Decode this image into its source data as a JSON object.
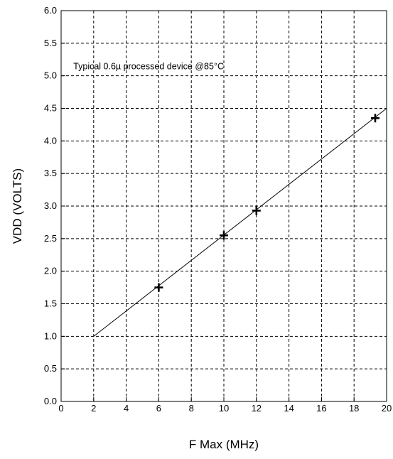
{
  "chart_data": {
    "type": "scatter",
    "title": "",
    "xlabel": "F Max (MHz)",
    "ylabel": "VDD (VOLTS)",
    "xlim": [
      0,
      20
    ],
    "ylim": [
      0.0,
      6.0
    ],
    "x_ticks": [
      0,
      2,
      4,
      6,
      8,
      10,
      12,
      14,
      16,
      18,
      20
    ],
    "y_ticks": [
      0.0,
      0.5,
      1.0,
      1.5,
      2.0,
      2.5,
      3.0,
      3.5,
      4.0,
      4.5,
      5.0,
      5.5,
      6.0
    ],
    "x_tick_labels": [
      "0",
      "2",
      "4",
      "6",
      "8",
      "10",
      "12",
      "14",
      "16",
      "18",
      "20"
    ],
    "y_tick_labels": [
      "0.0",
      "0.5",
      "1.0",
      "1.5",
      "2.0",
      "2.5",
      "3.0",
      "3.5",
      "4.0",
      "4.5",
      "5.0",
      "5.5",
      "6.0"
    ],
    "grid": true,
    "grid_style": "dashed",
    "series": [
      {
        "marker": "plus",
        "x": [
          6,
          10,
          12,
          19.3
        ],
        "y": [
          1.75,
          2.55,
          2.93,
          4.35
        ]
      }
    ],
    "trend_line": {
      "x": [
        2,
        20
      ],
      "y": [
        1.0,
        4.5
      ]
    },
    "annotations": [
      {
        "text": "Typical 0.6µ processed device @85°C"
      }
    ],
    "colors": {
      "line": "#000000",
      "grid": "#000000",
      "background": "#ffffff"
    }
  }
}
